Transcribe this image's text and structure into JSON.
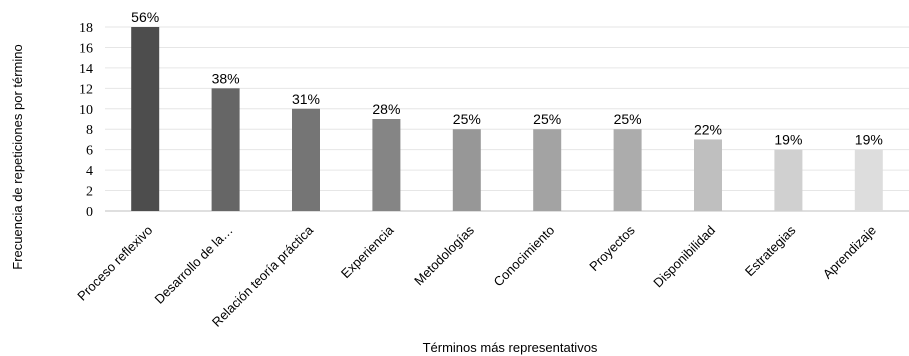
{
  "chart_data": {
    "type": "bar",
    "categories": [
      "Proceso reflexivo",
      "Desarrollo de la…",
      "Relación teoría práctica",
      "Experiencia",
      "Metodologías",
      "Conocimiento",
      "Proyectos",
      "Disponibilidad",
      "Estrategias",
      "Aprendizaje"
    ],
    "values": [
      18,
      12,
      10,
      9,
      8,
      8,
      8,
      7,
      6,
      6
    ],
    "data_labels": [
      "56%",
      "38%",
      "31%",
      "28%",
      "25%",
      "25%",
      "25%",
      "22%",
      "19%",
      "19%"
    ],
    "bar_colors": [
      "#4d4d4d",
      "#666666",
      "#757575",
      "#858585",
      "#979797",
      "#a3a3a3",
      "#acacac",
      "#bfbfbf",
      "#d0d0d0",
      "#dddddd"
    ],
    "xlabel": "Términos más representativos",
    "ylabel": "Frecuencia de repeticiones por término",
    "ylim": [
      0,
      18
    ],
    "yticks": [
      0,
      2,
      4,
      6,
      8,
      10,
      12,
      14,
      16,
      18
    ],
    "grid": true,
    "gridline_color": "#e6e6e6",
    "legend": "none"
  }
}
